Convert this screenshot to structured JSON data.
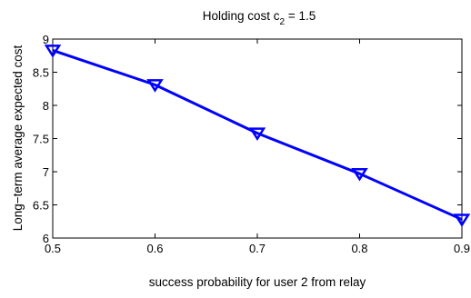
{
  "chart_data": {
    "type": "line",
    "title": "Holding cost c",
    "title_subscript": "2",
    "title_suffix": " = 1.5",
    "xlabel": "success probability for user 2 from relay",
    "ylabel": "Long−term average expected cost",
    "xlim": [
      0.5,
      0.9
    ],
    "ylim": [
      6,
      9
    ],
    "xticks": [
      "0.5",
      "0.6",
      "0.7",
      "0.8",
      "0.9"
    ],
    "yticks": [
      "6",
      "6.5",
      "7",
      "7.5",
      "8",
      "8.5",
      "9"
    ],
    "grid": false,
    "series": [
      {
        "color": "#0000ff",
        "marker": "down-triangle",
        "x": [
          0.5,
          0.6,
          0.7,
          0.8,
          0.9
        ],
        "y": [
          8.83,
          8.31,
          7.58,
          6.97,
          6.28
        ]
      }
    ]
  }
}
